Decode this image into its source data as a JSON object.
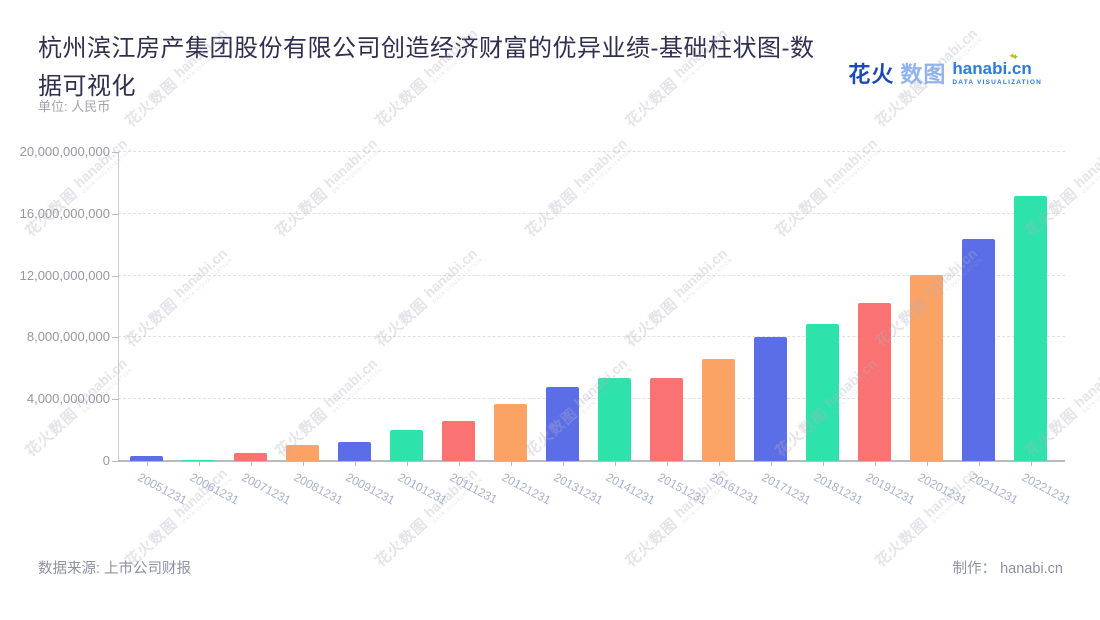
{
  "header": {
    "title": "杭州滨江房产集团股份有限公司创造经济财富的优异业绩-基础柱状图-数据可视化",
    "unit_label": "单位: 人民币"
  },
  "logo": {
    "cjk_bold": "花火",
    "cjk_light": "数图",
    "latin": "hanabi.cn",
    "tagline": "DATA VISUALIZATION"
  },
  "watermark": {
    "cjk": "花火数图",
    "latin": "hanabi.cn",
    "tagline": "DATA VISUALIZATION"
  },
  "footer": {
    "source_label": "数据来源: 上市公司财报",
    "credit_label": "制作： hanabi.cn"
  },
  "chart_data": {
    "type": "bar",
    "title": "杭州滨江房产集团股份有限公司创造经济财富的优异业绩-基础柱状图-数据可视化",
    "unit": "人民币",
    "xlabel": "",
    "ylabel": "",
    "ylim": [
      0,
      20000000000
    ],
    "ytick_step": 4000000000,
    "ytick_labels": [
      "0",
      "4,000,000,000",
      "8,000,000,000",
      "12,000,000,000",
      "16,000,000,000",
      "20,000,000,000"
    ],
    "grid": true,
    "legend": false,
    "bar_colors": [
      "#5b6ee8",
      "#2ee3ab",
      "#fa7272",
      "#faa364"
    ],
    "categories": [
      "20051231",
      "20061231",
      "20071231",
      "20081231",
      "20091231",
      "20101231",
      "20111231",
      "20121231",
      "20131231",
      "20141231",
      "20151231",
      "20161231",
      "20171231",
      "20181231",
      "20191231",
      "20201231",
      "20211231",
      "20221231"
    ],
    "values": [
      320000000,
      60000000,
      520000000,
      1050000000,
      1230000000,
      2030000000,
      2600000000,
      3700000000,
      4800000000,
      5400000000,
      5350000000,
      6600000000,
      8000000000,
      8850000000,
      10200000000,
      12050000000,
      14400000000,
      17150000000
    ]
  }
}
